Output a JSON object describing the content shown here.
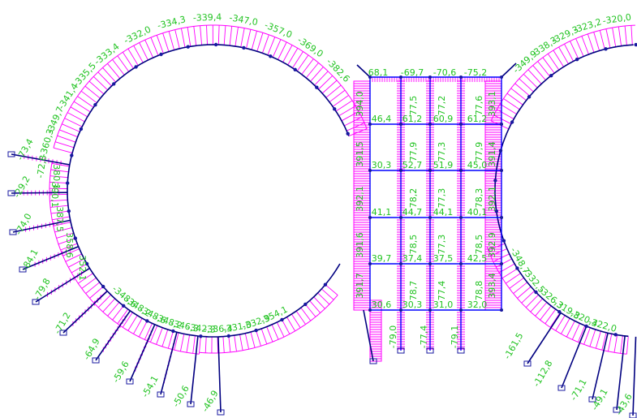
{
  "colors": {
    "background": "#ffffff",
    "moment_hatch": "#ff00ff",
    "frame_line": "#0000ff",
    "member_line": "#000080",
    "node": "#1818a0",
    "label": "#22c322"
  },
  "left_ring_outer_labels": [
    "-72,8",
    "-360,3",
    "-349,7",
    "-341,4",
    "-335,5",
    "-333,4",
    "-332,0",
    "-334,3",
    "-339,4",
    "-347,0",
    "-357,0",
    "-369,0",
    "-382,6"
  ],
  "left_ring_bottom_labels": [
    "-348,6",
    "-348,2",
    "-348,6",
    "-348,2",
    "-346,3",
    "-342,3",
    "-336,4",
    "-331,0",
    "-332,9",
    "-354,1"
  ],
  "left_ring_inner_labels": [
    "380,1",
    "390,1",
    "387,5",
    "358,6",
    "352,1"
  ],
  "left_strut_labels": [
    "-73,4",
    "-29,2",
    "-74,0",
    "-84,1",
    "-79,8",
    "-71,2",
    "-64,9",
    "-59,6",
    "-54,1",
    "-50,6",
    "-46,9"
  ],
  "right_ring_top_labels": [
    "-349,9",
    "-338,3",
    "-329,3",
    "-323,2",
    "-320,0"
  ],
  "right_ring_bottom_labels": [
    "-348,7",
    "-332,5",
    "-326,3",
    "-319,8",
    "-320,4",
    "-322,0"
  ],
  "right_strut_labels": [
    "-161,5",
    "-112,8",
    "-71,1",
    "-49,1",
    "-43,6"
  ],
  "frame_top_labels": [
    "68,1",
    "-69,7",
    "-70,6",
    "-75,2"
  ],
  "frame_left_labels": [
    "394,0",
    "391,5",
    "392,1",
    "391,6",
    "391,7"
  ],
  "frame_right_labels": [
    "393,1",
    "391,4",
    "392,1",
    "392,9",
    "393,4"
  ],
  "frame_column_labels": [
    "77,5",
    "77,2",
    "77,6",
    "77,9",
    "77,3",
    "77,9",
    "78,2",
    "77,3",
    "78,3",
    "78,5",
    "77,3",
    "78,5",
    "78,7",
    "77,4",
    "78,8"
  ],
  "frame_row_labels": [
    [
      "46,4",
      "61,2",
      "60,9",
      "61,2"
    ],
    [
      "30,3",
      "52,7",
      "51,9",
      "45,0"
    ],
    [
      "41,1",
      "44,7",
      "44,1",
      "40,1"
    ],
    [
      "39,7",
      "37,4",
      "37,5",
      "42,5"
    ],
    [
      "30,6",
      "30,3",
      "31,0",
      "32,0"
    ]
  ],
  "frame_base_labels": [
    "-79,0",
    "-77,4",
    "-79,1"
  ]
}
